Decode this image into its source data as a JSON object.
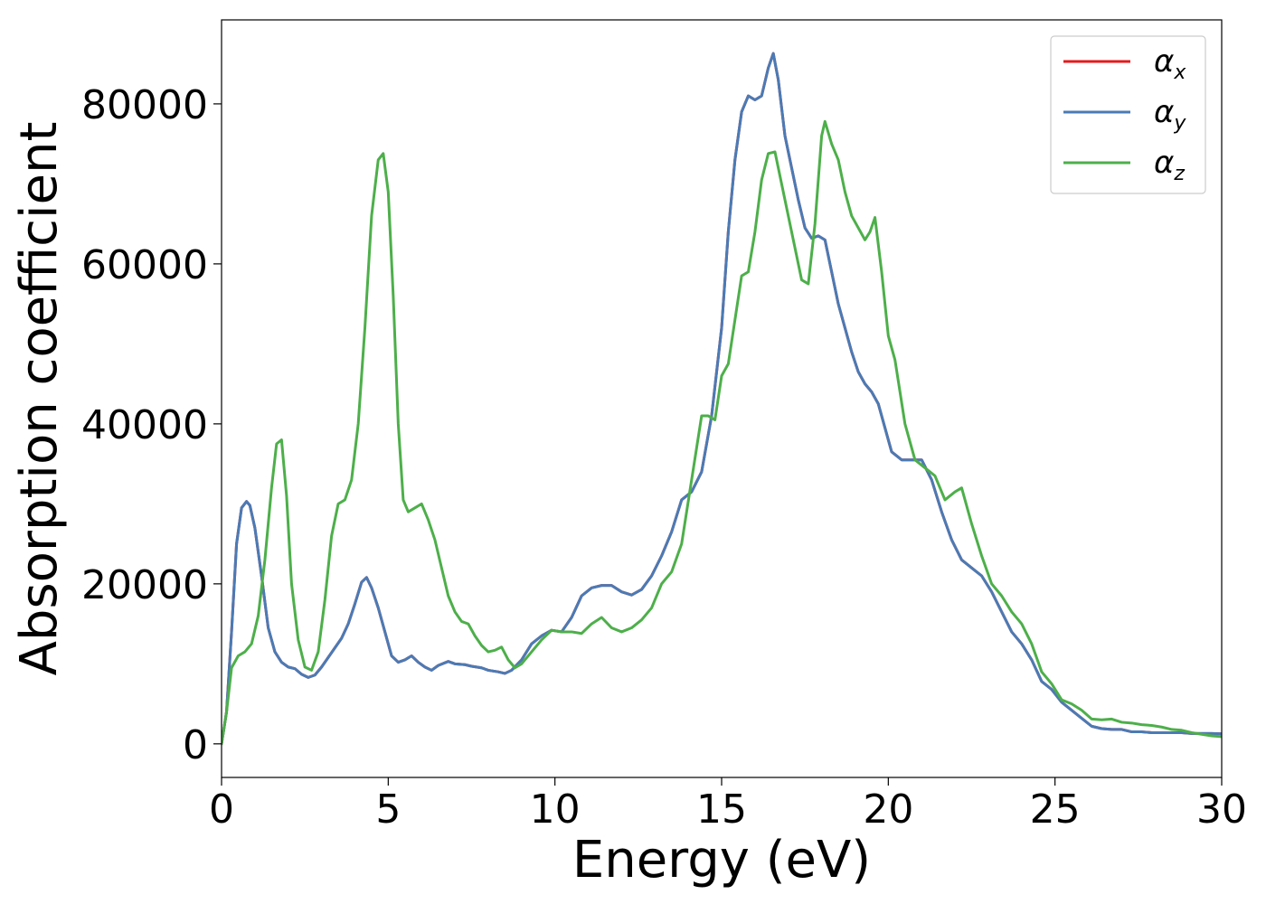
{
  "chart_data": {
    "type": "line",
    "title": "",
    "xlabel": "Energy (eV)",
    "ylabel": "Absorption coefficient",
    "xlim": [
      0,
      30
    ],
    "ylim": [
      -4200,
      90500
    ],
    "x_ticks": [
      0,
      5,
      10,
      15,
      20,
      25,
      30
    ],
    "y_ticks": [
      0,
      20000,
      40000,
      60000,
      80000
    ],
    "grid": false,
    "legend": {
      "position": "upper right",
      "entries": [
        {
          "symbol": "α",
          "subscript": "x",
          "color": "#e41a1c"
        },
        {
          "symbol": "α",
          "subscript": "y",
          "color": "#4a7bb5"
        },
        {
          "symbol": "α",
          "subscript": "z",
          "color": "#4daf4a"
        }
      ]
    },
    "series": [
      {
        "key": "alpha_x",
        "color": "#e41a1c",
        "x": [
          0,
          0.15,
          0.3,
          0.45,
          0.6,
          0.75,
          0.85,
          1.0,
          1.2,
          1.4,
          1.6,
          1.8,
          2.0,
          2.2,
          2.4,
          2.6,
          2.8,
          3.0,
          3.2,
          3.4,
          3.6,
          3.8,
          4.0,
          4.2,
          4.35,
          4.5,
          4.7,
          4.9,
          5.1,
          5.3,
          5.5,
          5.7,
          5.9,
          6.1,
          6.3,
          6.5,
          6.8,
          7.0,
          7.3,
          7.5,
          7.8,
          8.0,
          8.3,
          8.5,
          8.7,
          9.0,
          9.3,
          9.6,
          9.9,
          10.2,
          10.5,
          10.8,
          11.1,
          11.4,
          11.7,
          12.0,
          12.3,
          12.6,
          12.9,
          13.2,
          13.5,
          13.8,
          14.1,
          14.4,
          14.7,
          15.0,
          15.2,
          15.4,
          15.6,
          15.8,
          16.0,
          16.2,
          16.4,
          16.55,
          16.7,
          16.9,
          17.1,
          17.3,
          17.5,
          17.7,
          17.9,
          18.1,
          18.3,
          18.5,
          18.7,
          18.9,
          19.1,
          19.3,
          19.5,
          19.7,
          19.9,
          20.1,
          20.4,
          20.7,
          21.0,
          21.3,
          21.6,
          21.9,
          22.2,
          22.5,
          22.8,
          23.1,
          23.4,
          23.7,
          24.0,
          24.3,
          24.6,
          24.9,
          25.2,
          25.5,
          25.8,
          26.1,
          26.4,
          26.7,
          27.0,
          27.3,
          27.6,
          27.9,
          28.2,
          28.5,
          28.8,
          29.1,
          29.4,
          29.7,
          30.0
        ],
        "y": [
          0,
          4000,
          14000,
          25000,
          29500,
          30300,
          29800,
          27000,
          21000,
          14500,
          11500,
          10200,
          9600,
          9400,
          8700,
          8300,
          8600,
          9600,
          10800,
          12000,
          13200,
          15000,
          17500,
          20200,
          20800,
          19500,
          17000,
          14000,
          11000,
          10200,
          10500,
          11000,
          10200,
          9600,
          9200,
          9800,
          10300,
          10000,
          9900,
          9700,
          9500,
          9200,
          9000,
          8800,
          9200,
          10500,
          12500,
          13500,
          14200,
          14000,
          15800,
          18500,
          19500,
          19800,
          19800,
          19000,
          18600,
          19300,
          21000,
          23500,
          26500,
          30500,
          31500,
          34000,
          41000,
          52000,
          64000,
          73000,
          79000,
          81000,
          80500,
          81000,
          84500,
          86300,
          83000,
          76000,
          72000,
          68000,
          64500,
          63200,
          63500,
          63000,
          59000,
          55000,
          52000,
          49000,
          46500,
          45000,
          44000,
          42500,
          39500,
          36500,
          35500,
          35500,
          35500,
          33000,
          29000,
          25500,
          23000,
          22000,
          21000,
          19000,
          16500,
          14000,
          12500,
          10500,
          7800,
          6800,
          5200,
          4200,
          3200,
          2200,
          1900,
          1800,
          1800,
          1500,
          1500,
          1400,
          1400,
          1400,
          1400,
          1300,
          1300,
          1300,
          1250
        ]
      },
      {
        "key": "alpha_y",
        "color": "#4a7bb5",
        "x": [
          0,
          0.15,
          0.3,
          0.45,
          0.6,
          0.75,
          0.85,
          1.0,
          1.2,
          1.4,
          1.6,
          1.8,
          2.0,
          2.2,
          2.4,
          2.6,
          2.8,
          3.0,
          3.2,
          3.4,
          3.6,
          3.8,
          4.0,
          4.2,
          4.35,
          4.5,
          4.7,
          4.9,
          5.1,
          5.3,
          5.5,
          5.7,
          5.9,
          6.1,
          6.3,
          6.5,
          6.8,
          7.0,
          7.3,
          7.5,
          7.8,
          8.0,
          8.3,
          8.5,
          8.7,
          9.0,
          9.3,
          9.6,
          9.9,
          10.2,
          10.5,
          10.8,
          11.1,
          11.4,
          11.7,
          12.0,
          12.3,
          12.6,
          12.9,
          13.2,
          13.5,
          13.8,
          14.1,
          14.4,
          14.7,
          15.0,
          15.2,
          15.4,
          15.6,
          15.8,
          16.0,
          16.2,
          16.4,
          16.55,
          16.7,
          16.9,
          17.1,
          17.3,
          17.5,
          17.7,
          17.9,
          18.1,
          18.3,
          18.5,
          18.7,
          18.9,
          19.1,
          19.3,
          19.5,
          19.7,
          19.9,
          20.1,
          20.4,
          20.7,
          21.0,
          21.3,
          21.6,
          21.9,
          22.2,
          22.5,
          22.8,
          23.1,
          23.4,
          23.7,
          24.0,
          24.3,
          24.6,
          24.9,
          25.2,
          25.5,
          25.8,
          26.1,
          26.4,
          26.7,
          27.0,
          27.3,
          27.6,
          27.9,
          28.2,
          28.5,
          28.8,
          29.1,
          29.4,
          29.7,
          30.0
        ],
        "y": [
          0,
          4000,
          14000,
          25000,
          29500,
          30300,
          29800,
          27000,
          21000,
          14500,
          11500,
          10200,
          9600,
          9400,
          8700,
          8300,
          8600,
          9600,
          10800,
          12000,
          13200,
          15000,
          17500,
          20200,
          20800,
          19500,
          17000,
          14000,
          11000,
          10200,
          10500,
          11000,
          10200,
          9600,
          9200,
          9800,
          10300,
          10000,
          9900,
          9700,
          9500,
          9200,
          9000,
          8800,
          9200,
          10500,
          12500,
          13500,
          14200,
          14000,
          15800,
          18500,
          19500,
          19800,
          19800,
          19000,
          18600,
          19300,
          21000,
          23500,
          26500,
          30500,
          31500,
          34000,
          41000,
          52000,
          64000,
          73000,
          79000,
          81000,
          80500,
          81000,
          84500,
          86300,
          83000,
          76000,
          72000,
          68000,
          64500,
          63200,
          63500,
          63000,
          59000,
          55000,
          52000,
          49000,
          46500,
          45000,
          44000,
          42500,
          39500,
          36500,
          35500,
          35500,
          35500,
          33000,
          29000,
          25500,
          23000,
          22000,
          21000,
          19000,
          16500,
          14000,
          12500,
          10500,
          7800,
          6800,
          5200,
          4200,
          3200,
          2200,
          1900,
          1800,
          1800,
          1500,
          1500,
          1400,
          1400,
          1400,
          1400,
          1300,
          1300,
          1300,
          1250
        ]
      },
      {
        "key": "alpha_z",
        "color": "#4daf4a",
        "x": [
          0,
          0.15,
          0.3,
          0.5,
          0.7,
          0.9,
          1.1,
          1.3,
          1.5,
          1.65,
          1.8,
          1.95,
          2.1,
          2.3,
          2.5,
          2.7,
          2.9,
          3.1,
          3.3,
          3.5,
          3.7,
          3.9,
          4.1,
          4.3,
          4.5,
          4.7,
          4.85,
          5.0,
          5.15,
          5.3,
          5.45,
          5.6,
          5.8,
          6.0,
          6.2,
          6.4,
          6.6,
          6.8,
          7.0,
          7.2,
          7.4,
          7.6,
          7.8,
          8.0,
          8.2,
          8.4,
          8.6,
          8.8,
          9.0,
          9.3,
          9.6,
          9.9,
          10.2,
          10.5,
          10.8,
          11.1,
          11.4,
          11.7,
          12.0,
          12.3,
          12.6,
          12.9,
          13.2,
          13.5,
          13.8,
          14.1,
          14.4,
          14.6,
          14.8,
          15.0,
          15.2,
          15.4,
          15.6,
          15.8,
          16.0,
          16.2,
          16.4,
          16.6,
          16.8,
          17.0,
          17.2,
          17.4,
          17.6,
          17.8,
          18.0,
          18.1,
          18.3,
          18.5,
          18.7,
          18.9,
          19.1,
          19.3,
          19.45,
          19.6,
          19.8,
          20.0,
          20.2,
          20.5,
          20.8,
          21.1,
          21.4,
          21.7,
          22.0,
          22.2,
          22.5,
          22.8,
          23.1,
          23.4,
          23.7,
          24.0,
          24.3,
          24.6,
          24.9,
          25.2,
          25.5,
          25.8,
          26.1,
          26.4,
          26.7,
          27.0,
          27.3,
          27.6,
          27.9,
          28.2,
          28.5,
          28.8,
          29.1,
          29.4,
          29.7,
          30.0
        ],
        "y": [
          0,
          4000,
          9500,
          11000,
          11500,
          12500,
          16000,
          23000,
          32000,
          37500,
          38000,
          31000,
          20000,
          13000,
          9600,
          9200,
          11500,
          18000,
          26000,
          30000,
          30500,
          33000,
          40000,
          52000,
          66000,
          73000,
          73800,
          69000,
          56000,
          40000,
          30500,
          29000,
          29500,
          30000,
          28000,
          25500,
          22000,
          18500,
          16500,
          15300,
          15000,
          13500,
          12300,
          11500,
          11700,
          12100,
          10500,
          9500,
          10000,
          11500,
          13000,
          14200,
          14000,
          14000,
          13800,
          15000,
          15800,
          14500,
          14000,
          14500,
          15500,
          17000,
          20000,
          21500,
          25000,
          33000,
          41000,
          41000,
          40500,
          46000,
          47500,
          53000,
          58500,
          59000,
          64000,
          70500,
          73800,
          74000,
          70000,
          66000,
          62000,
          58000,
          57500,
          65000,
          76000,
          77800,
          75000,
          73000,
          69000,
          66000,
          64500,
          63000,
          64000,
          65800,
          59000,
          51000,
          48000,
          40000,
          35500,
          34500,
          33500,
          30500,
          31500,
          32000,
          27500,
          23500,
          20000,
          18500,
          16500,
          15000,
          12500,
          9000,
          7500,
          5500,
          5000,
          4200,
          3100,
          3000,
          3100,
          2700,
          2600,
          2400,
          2300,
          2100,
          1800,
          1700,
          1400,
          1200,
          1000,
          900
        ]
      }
    ]
  }
}
